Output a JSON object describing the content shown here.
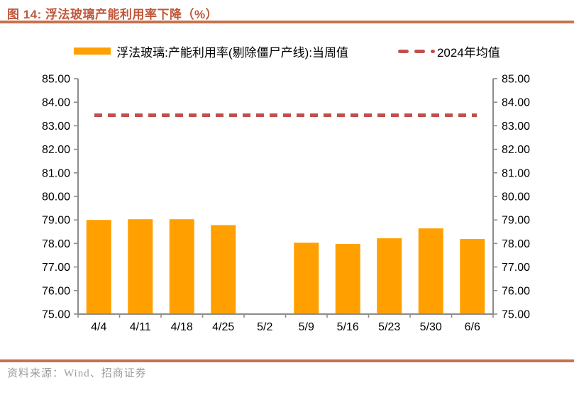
{
  "header": {
    "title": "图 14:  浮法玻璃产能利用率下降（%）"
  },
  "chart_data": {
    "type": "bar",
    "title": "浮法玻璃产能利用率下降（%）",
    "categories": [
      "4/4",
      "4/11",
      "4/18",
      "4/25",
      "5/2",
      "5/9",
      "5/16",
      "5/23",
      "5/30",
      "6/6"
    ],
    "series": [
      {
        "name": "浮法玻璃:产能利用率(剔除僵尸产线):当周值",
        "type": "bar",
        "values": [
          79.0,
          79.03,
          79.03,
          78.78,
          null,
          78.03,
          77.98,
          78.22,
          78.64,
          78.19
        ]
      },
      {
        "name": "2024年均值",
        "type": "dashed-line",
        "value": 83.45
      }
    ],
    "xlabel": "",
    "ylabel": "",
    "ylim": [
      75,
      85
    ],
    "ytick_step": 1,
    "ytick_decimals": 2,
    "dual_axis": true,
    "grid": false,
    "legend_position": "top",
    "colors": {
      "bar": "#FFA000",
      "avg_line": "#C0504D",
      "axis": "#8C8C8C",
      "tick_label": "#000000",
      "accent_rule": "#C7714E",
      "title": "#C0583B",
      "source_text": "#9B9B9B"
    }
  },
  "footer": {
    "source": "资料来源：Wind、招商证券"
  }
}
